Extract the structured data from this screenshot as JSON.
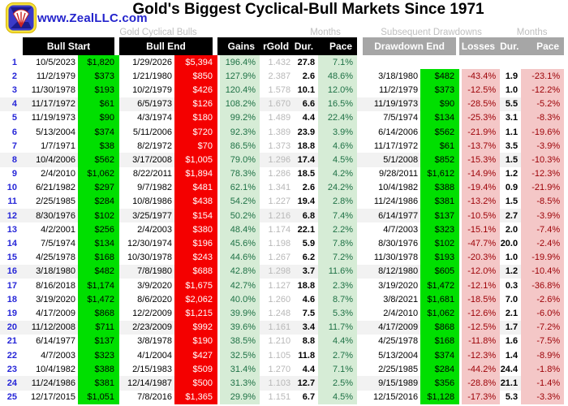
{
  "page": {
    "site_link": "www.ZealLLC.com",
    "title": "Gold's Biggest Cyclical-Bull Markets Since 1971"
  },
  "group_labels": {
    "bulls": "Gold Cyclical Bulls",
    "months_left": "Months",
    "drawdowns": "Subsequent Drawdowns",
    "months_right": "Months"
  },
  "headers": {
    "bull_start": "Bull Start",
    "bull_end": "Bull End",
    "gains": "Gains",
    "rgold": "rGold",
    "dur": "Dur.",
    "pace": "Pace",
    "drawdown_end": "Drawdown End",
    "losses": "Losses",
    "dur2": "Dur.",
    "pace2": "Pace"
  },
  "colors": {
    "bull_start_price_bg": "#00df00",
    "bull_end_price_bg": "#f40000",
    "gains_bg": "#d6ecd6",
    "gains_text": "#1e7145",
    "losses_bg": "#f4c7c7",
    "losses_text": "#9c0006",
    "header_black": "#000000",
    "header_gray": "#a6a6a6",
    "row_shade": "#f2f2f2",
    "row_number_blue": "#2626d8",
    "muted_label_gray": "#bfbfbf",
    "site_blue": "#2424cc"
  },
  "chart_data": {
    "type": "table",
    "title": "Gold's Biggest Cyclical-Bull Markets Since 1971",
    "column_groups": [
      "Gold Cyclical Bulls",
      "Months",
      "Subsequent Drawdowns",
      "Months"
    ],
    "columns": [
      "#",
      "Bull Start Date",
      "Bull Start Price",
      "Bull End Date",
      "Bull End Price",
      "Gains",
      "rGold",
      "Dur.",
      "Pace",
      "Drawdown End Date",
      "Drawdown End Price",
      "Losses",
      "Dur.",
      "Pace"
    ],
    "rows": [
      [
        "1",
        "10/5/2023",
        "$1,820",
        "1/29/2026",
        "$5,394",
        "196.4%",
        "1.432",
        "27.8",
        "7.1%",
        "",
        "",
        "",
        "",
        ""
      ],
      [
        "2",
        "11/2/1979",
        "$373",
        "1/21/1980",
        "$850",
        "127.9%",
        "2.387",
        "2.6",
        "48.6%",
        "3/18/1980",
        "$482",
        "-43.4%",
        "1.9",
        "-23.1%"
      ],
      [
        "3",
        "11/30/1978",
        "$193",
        "10/2/1979",
        "$426",
        "120.4%",
        "1.578",
        "10.1",
        "12.0%",
        "11/2/1979",
        "$373",
        "-12.5%",
        "1.0",
        "-12.2%"
      ],
      [
        "4",
        "11/17/1972",
        "$61",
        "6/5/1973",
        "$126",
        "108.2%",
        "1.670",
        "6.6",
        "16.5%",
        "11/19/1973",
        "$90",
        "-28.5%",
        "5.5",
        "-5.2%"
      ],
      [
        "5",
        "11/19/1973",
        "$90",
        "4/3/1974",
        "$180",
        "99.2%",
        "1.489",
        "4.4",
        "22.4%",
        "7/5/1974",
        "$134",
        "-25.3%",
        "3.1",
        "-8.3%"
      ],
      [
        "6",
        "5/13/2004",
        "$374",
        "5/11/2006",
        "$720",
        "92.3%",
        "1.389",
        "23.9",
        "3.9%",
        "6/14/2006",
        "$562",
        "-21.9%",
        "1.1",
        "-19.6%"
      ],
      [
        "7",
        "1/7/1971",
        "$38",
        "8/2/1972",
        "$70",
        "86.5%",
        "1.373",
        "18.8",
        "4.6%",
        "11/17/1972",
        "$61",
        "-13.7%",
        "3.5",
        "-3.9%"
      ],
      [
        "8",
        "10/4/2006",
        "$562",
        "3/17/2008",
        "$1,005",
        "79.0%",
        "1.296",
        "17.4",
        "4.5%",
        "5/1/2008",
        "$852",
        "-15.3%",
        "1.5",
        "-10.3%"
      ],
      [
        "9",
        "2/4/2010",
        "$1,062",
        "8/22/2011",
        "$1,894",
        "78.3%",
        "1.286",
        "18.5",
        "4.2%",
        "9/28/2011",
        "$1,612",
        "-14.9%",
        "1.2",
        "-12.3%"
      ],
      [
        "10",
        "6/21/1982",
        "$297",
        "9/7/1982",
        "$481",
        "62.1%",
        "1.341",
        "2.6",
        "24.2%",
        "10/4/1982",
        "$388",
        "-19.4%",
        "0.9",
        "-21.9%"
      ],
      [
        "11",
        "2/25/1985",
        "$284",
        "10/8/1986",
        "$438",
        "54.2%",
        "1.227",
        "19.4",
        "2.8%",
        "11/24/1986",
        "$381",
        "-13.2%",
        "1.5",
        "-8.5%"
      ],
      [
        "12",
        "8/30/1976",
        "$102",
        "3/25/1977",
        "$154",
        "50.2%",
        "1.216",
        "6.8",
        "7.4%",
        "6/14/1977",
        "$137",
        "-10.5%",
        "2.7",
        "-3.9%"
      ],
      [
        "13",
        "4/2/2001",
        "$256",
        "2/4/2003",
        "$380",
        "48.4%",
        "1.174",
        "22.1",
        "2.2%",
        "4/7/2003",
        "$323",
        "-15.1%",
        "2.0",
        "-7.4%"
      ],
      [
        "14",
        "7/5/1974",
        "$134",
        "12/30/1974",
        "$196",
        "45.6%",
        "1.198",
        "5.9",
        "7.8%",
        "8/30/1976",
        "$102",
        "-47.7%",
        "20.0",
        "-2.4%"
      ],
      [
        "15",
        "4/25/1978",
        "$168",
        "10/30/1978",
        "$243",
        "44.6%",
        "1.267",
        "6.2",
        "7.2%",
        "11/30/1978",
        "$193",
        "-20.3%",
        "1.0",
        "-19.9%"
      ],
      [
        "16",
        "3/18/1980",
        "$482",
        "7/8/1980",
        "$688",
        "42.8%",
        "1.298",
        "3.7",
        "11.6%",
        "8/12/1980",
        "$605",
        "-12.0%",
        "1.2",
        "-10.4%"
      ],
      [
        "17",
        "8/16/2018",
        "$1,174",
        "3/9/2020",
        "$1,675",
        "42.7%",
        "1.127",
        "18.8",
        "2.3%",
        "3/19/2020",
        "$1,472",
        "-12.1%",
        "0.3",
        "-36.8%"
      ],
      [
        "18",
        "3/19/2020",
        "$1,472",
        "8/6/2020",
        "$2,062",
        "40.0%",
        "1.260",
        "4.6",
        "8.7%",
        "3/8/2021",
        "$1,681",
        "-18.5%",
        "7.0",
        "-2.6%"
      ],
      [
        "19",
        "4/17/2009",
        "$868",
        "12/2/2009",
        "$1,215",
        "39.9%",
        "1.248",
        "7.5",
        "5.3%",
        "2/4/2010",
        "$1,062",
        "-12.6%",
        "2.1",
        "-6.0%"
      ],
      [
        "20",
        "11/12/2008",
        "$711",
        "2/23/2009",
        "$992",
        "39.6%",
        "1.161",
        "3.4",
        "11.7%",
        "4/17/2009",
        "$868",
        "-12.5%",
        "1.7",
        "-7.2%"
      ],
      [
        "21",
        "6/14/1977",
        "$137",
        "3/8/1978",
        "$190",
        "38.5%",
        "1.210",
        "8.8",
        "4.4%",
        "4/25/1978",
        "$168",
        "-11.8%",
        "1.6",
        "-7.5%"
      ],
      [
        "22",
        "4/7/2003",
        "$323",
        "4/1/2004",
        "$427",
        "32.5%",
        "1.105",
        "11.8",
        "2.7%",
        "5/13/2004",
        "$374",
        "-12.3%",
        "1.4",
        "-8.9%"
      ],
      [
        "23",
        "10/4/1982",
        "$388",
        "2/15/1983",
        "$509",
        "31.4%",
        "1.270",
        "4.4",
        "7.1%",
        "2/25/1985",
        "$284",
        "-44.2%",
        "24.4",
        "-1.8%"
      ],
      [
        "24",
        "11/24/1986",
        "$381",
        "12/14/1987",
        "$500",
        "31.3%",
        "1.103",
        "12.7",
        "2.5%",
        "9/15/1989",
        "$356",
        "-28.8%",
        "21.1",
        "-1.4%"
      ],
      [
        "25",
        "12/17/2015",
        "$1,051",
        "7/8/2016",
        "$1,365",
        "29.9%",
        "1.151",
        "6.7",
        "4.5%",
        "12/15/2016",
        "$1,128",
        "-17.3%",
        "5.3",
        "-3.3%"
      ]
    ]
  }
}
